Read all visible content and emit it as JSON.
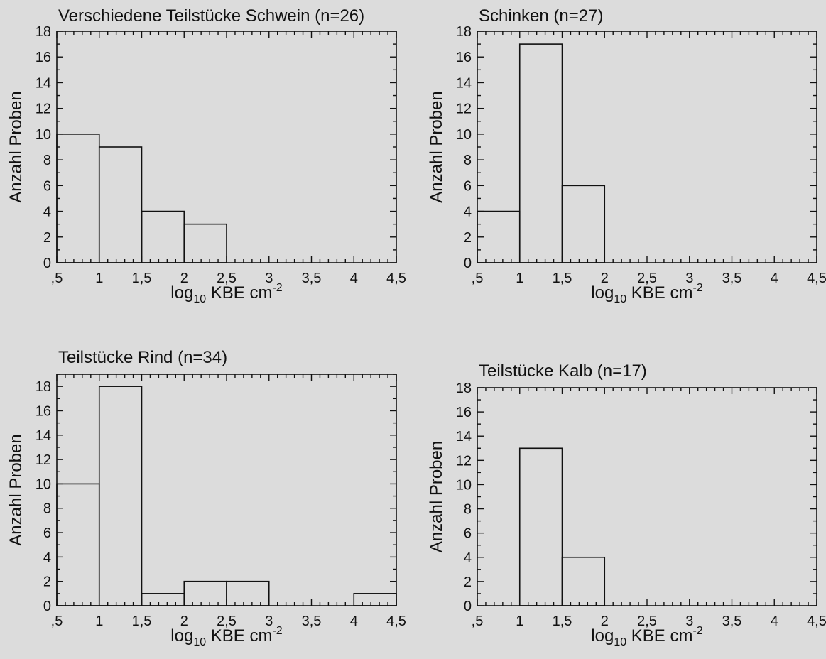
{
  "chart_data": [
    {
      "type": "bar",
      "title": "Verschiedene Teilstücke Schwein (n=26)",
      "xlabel": {
        "prefix": "log",
        "sub": "10",
        "main": " KBE cm",
        "sup": "-2"
      },
      "ylabel": "Anzahl Proben",
      "xlim": [
        0.5,
        4.5
      ],
      "ylim": [
        0,
        18
      ],
      "xticks": [
        {
          "value": 0.5,
          "label": ",5"
        },
        {
          "value": 1,
          "label": "1"
        },
        {
          "value": 1.5,
          "label": "1,5"
        },
        {
          "value": 2,
          "label": "2"
        },
        {
          "value": 2.5,
          "label": "2,5"
        },
        {
          "value": 3,
          "label": "3"
        },
        {
          "value": 3.5,
          "label": "3,5"
        },
        {
          "value": 4,
          "label": "4"
        },
        {
          "value": 4.5,
          "label": "4,5"
        }
      ],
      "yticks": [
        {
          "value": 0,
          "label": "0"
        },
        {
          "value": 2,
          "label": "2"
        },
        {
          "value": 4,
          "label": "4"
        },
        {
          "value": 6,
          "label": "6"
        },
        {
          "value": 8,
          "label": "8"
        },
        {
          "value": 10,
          "label": "10"
        },
        {
          "value": 12,
          "label": "12"
        },
        {
          "value": 14,
          "label": "14"
        },
        {
          "value": 16,
          "label": "16"
        },
        {
          "value": 18,
          "label": "18"
        }
      ],
      "bins": [
        {
          "from": 0.5,
          "to": 1.0,
          "count": 10
        },
        {
          "from": 1.0,
          "to": 1.5,
          "count": 9
        },
        {
          "from": 1.5,
          "to": 2.0,
          "count": 4
        },
        {
          "from": 2.0,
          "to": 2.5,
          "count": 3
        }
      ]
    },
    {
      "type": "bar",
      "title": "Schinken (n=27)",
      "xlabel": {
        "prefix": "log",
        "sub": "10",
        "main": " KBE cm",
        "sup": "-2"
      },
      "ylabel": "Anzahl Proben",
      "xlim": [
        0.5,
        4.5
      ],
      "ylim": [
        0,
        18
      ],
      "xticks": [
        {
          "value": 0.5,
          "label": ",5"
        },
        {
          "value": 1,
          "label": "1"
        },
        {
          "value": 1.5,
          "label": "1,5"
        },
        {
          "value": 2,
          "label": "2"
        },
        {
          "value": 2.5,
          "label": "2,5"
        },
        {
          "value": 3,
          "label": "3"
        },
        {
          "value": 3.5,
          "label": "3,5"
        },
        {
          "value": 4,
          "label": "4"
        },
        {
          "value": 4.5,
          "label": "4,5"
        }
      ],
      "yticks": [
        {
          "value": 0,
          "label": "0"
        },
        {
          "value": 2,
          "label": "2"
        },
        {
          "value": 4,
          "label": "4"
        },
        {
          "value": 6,
          "label": "6"
        },
        {
          "value": 8,
          "label": "8"
        },
        {
          "value": 10,
          "label": "10"
        },
        {
          "value": 12,
          "label": "12"
        },
        {
          "value": 14,
          "label": "14"
        },
        {
          "value": 16,
          "label": "16"
        },
        {
          "value": 18,
          "label": "18"
        }
      ],
      "bins": [
        {
          "from": 0.5,
          "to": 1.0,
          "count": 4
        },
        {
          "from": 1.0,
          "to": 1.5,
          "count": 17
        },
        {
          "from": 1.5,
          "to": 2.0,
          "count": 6
        }
      ]
    },
    {
      "type": "bar",
      "title": "Teilstücke Rind (n=34)",
      "xlabel": {
        "prefix": "log",
        "sub": "10",
        "main": " KBE cm",
        "sup": "-2"
      },
      "ylabel": "Anzahl Proben",
      "xlim": [
        0.5,
        4.5
      ],
      "ylim": [
        0,
        19
      ],
      "xticks": [
        {
          "value": 0.5,
          "label": ",5"
        },
        {
          "value": 1,
          "label": "1"
        },
        {
          "value": 1.5,
          "label": "1,5"
        },
        {
          "value": 2,
          "label": "2"
        },
        {
          "value": 2.5,
          "label": "2,5"
        },
        {
          "value": 3,
          "label": "3"
        },
        {
          "value": 3.5,
          "label": "3,5"
        },
        {
          "value": 4,
          "label": "4"
        },
        {
          "value": 4.5,
          "label": "4,5"
        }
      ],
      "yticks": [
        {
          "value": 0,
          "label": "0"
        },
        {
          "value": 2,
          "label": "2"
        },
        {
          "value": 4,
          "label": "4"
        },
        {
          "value": 6,
          "label": "6"
        },
        {
          "value": 8,
          "label": "8"
        },
        {
          "value": 10,
          "label": "10"
        },
        {
          "value": 12,
          "label": "12"
        },
        {
          "value": 14,
          "label": "14"
        },
        {
          "value": 16,
          "label": "16"
        },
        {
          "value": 18,
          "label": "18"
        }
      ],
      "bins": [
        {
          "from": 0.5,
          "to": 1.0,
          "count": 10
        },
        {
          "from": 1.0,
          "to": 1.5,
          "count": 18
        },
        {
          "from": 1.5,
          "to": 2.0,
          "count": 1
        },
        {
          "from": 2.0,
          "to": 2.5,
          "count": 2
        },
        {
          "from": 2.5,
          "to": 3.0,
          "count": 2
        },
        {
          "from": 4.0,
          "to": 4.5,
          "count": 1
        }
      ]
    },
    {
      "type": "bar",
      "title": "Teilstücke Kalb (n=17)",
      "xlabel": {
        "prefix": "log",
        "sub": "10",
        "main": " KBE cm",
        "sup": "-2"
      },
      "ylabel": "Anzahl Proben",
      "xlim": [
        0.5,
        4.5
      ],
      "ylim": [
        0,
        18
      ],
      "xticks": [
        {
          "value": 0.5,
          "label": ",5"
        },
        {
          "value": 1,
          "label": "1"
        },
        {
          "value": 1.5,
          "label": "1,5"
        },
        {
          "value": 2,
          "label": "2"
        },
        {
          "value": 2.5,
          "label": "2,5"
        },
        {
          "value": 3,
          "label": "3"
        },
        {
          "value": 3.5,
          "label": "3,5"
        },
        {
          "value": 4,
          "label": "4"
        },
        {
          "value": 4.5,
          "label": "4,5"
        }
      ],
      "yticks": [
        {
          "value": 0,
          "label": "0"
        },
        {
          "value": 2,
          "label": "2"
        },
        {
          "value": 4,
          "label": "4"
        },
        {
          "value": 6,
          "label": "6"
        },
        {
          "value": 8,
          "label": "8"
        },
        {
          "value": 10,
          "label": "10"
        },
        {
          "value": 12,
          "label": "12"
        },
        {
          "value": 14,
          "label": "14"
        },
        {
          "value": 16,
          "label": "16"
        },
        {
          "value": 18,
          "label": "18"
        }
      ],
      "bins": [
        {
          "from": 1.0,
          "to": 1.5,
          "count": 13
        },
        {
          "from": 1.5,
          "to": 2.0,
          "count": 4
        }
      ]
    }
  ]
}
